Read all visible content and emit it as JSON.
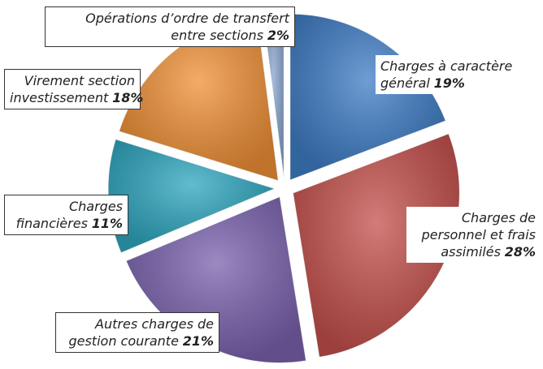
{
  "chart_data": {
    "type": "pie",
    "categories": [
      "Charges à caractère général",
      "Charges de personnel et frais assimilés",
      "Autres charges de gestion courante",
      "Charges financières",
      "Virement section investissement",
      "Opérations d’ordre de transfert entre sections"
    ],
    "values": [
      19,
      28,
      21,
      11,
      18,
      2
    ],
    "value_labels": [
      "19%",
      "28%",
      "21%",
      "11%",
      "18%",
      "2%"
    ],
    "colors": [
      "#3f7dc6",
      "#c4504c",
      "#7a62ae",
      "#2ea6bf",
      "#ef9036",
      "#8aa6cf"
    ]
  }
}
